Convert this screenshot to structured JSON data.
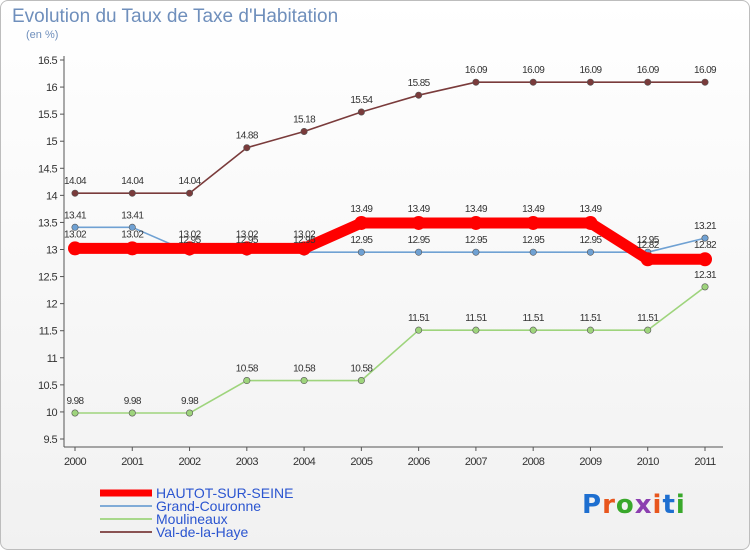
{
  "title": "Evolution du Taux de Taxe d'Habitation",
  "subtitle": "(en %)",
  "logo": {
    "text": "Proxiti",
    "colors": [
      "#1e6fd0",
      "#e8561d",
      "#39a82b",
      "#8c3fb0",
      "#e8561d",
      "#1e6fd0",
      "#39a82b"
    ]
  },
  "chart_data": {
    "type": "line",
    "x": [
      "2000",
      "2001",
      "2002",
      "2003",
      "2004",
      "2005",
      "2006",
      "2007",
      "2008",
      "2009",
      "2010",
      "2011"
    ],
    "yticks": [
      "9.5",
      "10",
      "10.5",
      "11",
      "11.5",
      "12",
      "12.5",
      "13",
      "13.5",
      "14",
      "14.5",
      "15",
      "15.5",
      "16",
      "16.5"
    ],
    "ylim": [
      9.5,
      16.5
    ],
    "grid": false,
    "legend_position": "bottom-left",
    "series": [
      {
        "name": "HAUTOT-SUR-SEINE",
        "color": "#ff0000",
        "thick": true,
        "values": [
          13.02,
          13.02,
          13.02,
          13.02,
          13.02,
          13.49,
          13.49,
          13.49,
          13.49,
          13.49,
          12.82,
          12.82
        ],
        "labels": [
          "13.02",
          "13.02",
          "13.02",
          "13.02",
          "13.02",
          "13.49",
          "13.49",
          "13.49",
          "13.49",
          "13.49",
          "12.82",
          "12.82"
        ]
      },
      {
        "name": "Grand-Couronne",
        "color": "#6fa1d3",
        "thick": false,
        "values": [
          13.41,
          13.41,
          12.95,
          12.95,
          12.95,
          12.95,
          12.95,
          12.95,
          12.95,
          12.95,
          12.95,
          13.21
        ],
        "labels": [
          "13.41",
          "13.41",
          "12.95",
          "12.95",
          "12.95",
          "12.95",
          "12.95",
          "12.95",
          "12.95",
          "12.95",
          "12.95",
          "13.21"
        ]
      },
      {
        "name": "Moulineaux",
        "color": "#9ed47c",
        "thick": false,
        "values": [
          9.98,
          9.98,
          9.98,
          10.58,
          10.58,
          10.58,
          11.51,
          11.51,
          11.51,
          11.51,
          11.51,
          12.31
        ],
        "labels": [
          "9.98",
          "9.98",
          "9.98",
          "10.58",
          "10.58",
          "10.58",
          "11.51",
          "11.51",
          "11.51",
          "11.51",
          "11.51",
          "12.31"
        ]
      },
      {
        "name": "Val-de-la-Haye",
        "color": "#7a3b3b",
        "thick": false,
        "values": [
          14.04,
          14.04,
          14.04,
          14.88,
          15.18,
          15.54,
          15.85,
          16.09,
          16.09,
          16.09,
          16.09,
          16.09
        ],
        "labels": [
          "14.04",
          "14.04",
          "14.04",
          "14.88",
          "15.18",
          "15.54",
          "15.85",
          "16.09",
          "16.09",
          "16.09",
          "16.09",
          "16.09"
        ]
      }
    ]
  }
}
